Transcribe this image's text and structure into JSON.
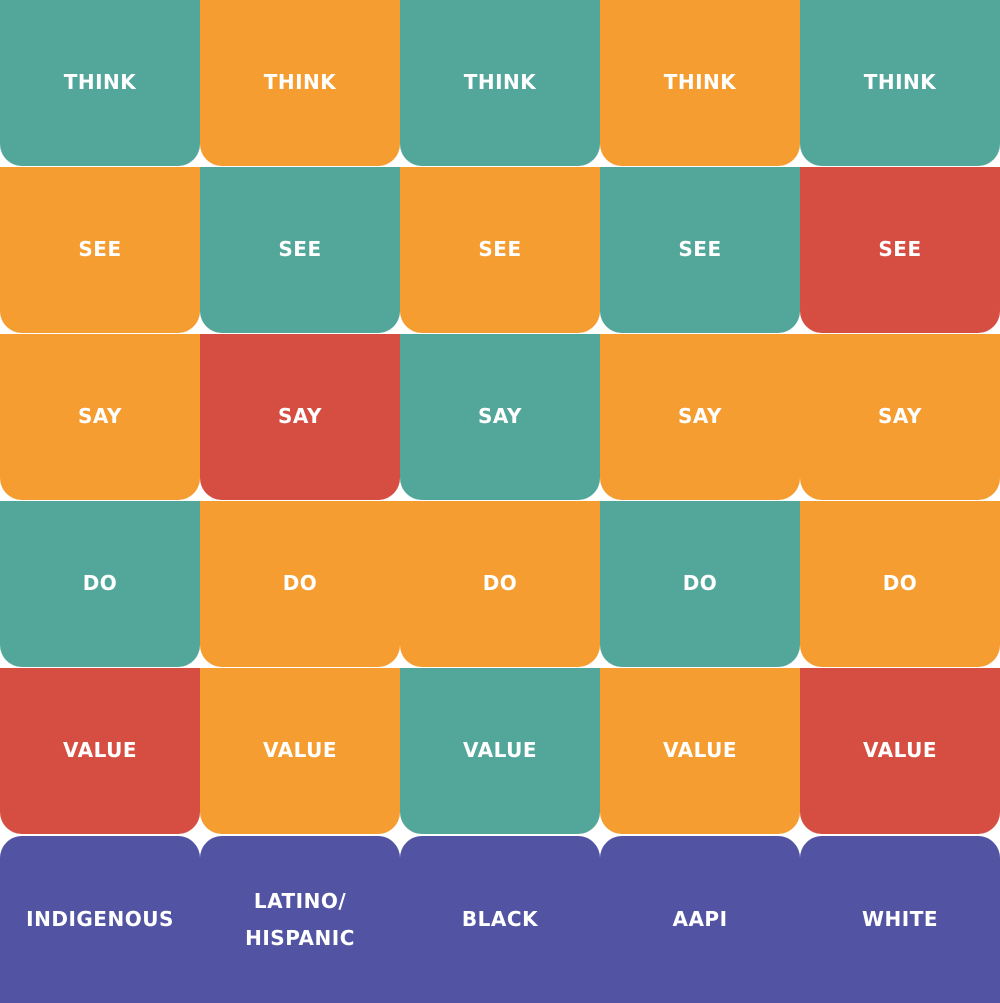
{
  "colors": {
    "teal": "#52A79A",
    "orange": "#F59D30",
    "red": "#D64E42",
    "purple": "#5254A3",
    "background": "#FFFFFF"
  },
  "rows": [
    {
      "cells": [
        {
          "label": "THINK",
          "color": "teal"
        },
        {
          "label": "THINK",
          "color": "orange"
        },
        {
          "label": "THINK",
          "color": "teal"
        },
        {
          "label": "THINK",
          "color": "orange"
        },
        {
          "label": "THINK",
          "color": "teal"
        }
      ]
    },
    {
      "cells": [
        {
          "label": "SEE",
          "color": "orange"
        },
        {
          "label": "SEE",
          "color": "teal"
        },
        {
          "label": "SEE",
          "color": "orange"
        },
        {
          "label": "SEE",
          "color": "teal"
        },
        {
          "label": "SEE",
          "color": "red"
        }
      ]
    },
    {
      "cells": [
        {
          "label": "SAY",
          "color": "orange"
        },
        {
          "label": "SAY",
          "color": "red"
        },
        {
          "label": "SAY",
          "color": "teal"
        },
        {
          "label": "SAY",
          "color": "orange"
        },
        {
          "label": "SAY",
          "color": "orange"
        }
      ]
    },
    {
      "cells": [
        {
          "label": "DO",
          "color": "teal"
        },
        {
          "label": "DO",
          "color": "orange"
        },
        {
          "label": "DO",
          "color": "orange"
        },
        {
          "label": "DO",
          "color": "teal"
        },
        {
          "label": "DO",
          "color": "orange"
        }
      ]
    },
    {
      "cells": [
        {
          "label": "VALUE",
          "color": "red"
        },
        {
          "label": "VALUE",
          "color": "orange"
        },
        {
          "label": "VALUE",
          "color": "teal"
        },
        {
          "label": "VALUE",
          "color": "orange"
        },
        {
          "label": "VALUE",
          "color": "red"
        }
      ]
    },
    {
      "cells": [
        {
          "label": "INDIGENOUS",
          "color": "purple"
        },
        {
          "label": "LATINO/\nHISPANIC",
          "color": "purple"
        },
        {
          "label": "BLACK",
          "color": "purple"
        },
        {
          "label": "AAPI",
          "color": "purple"
        },
        {
          "label": "WHITE",
          "color": "purple"
        }
      ]
    }
  ]
}
